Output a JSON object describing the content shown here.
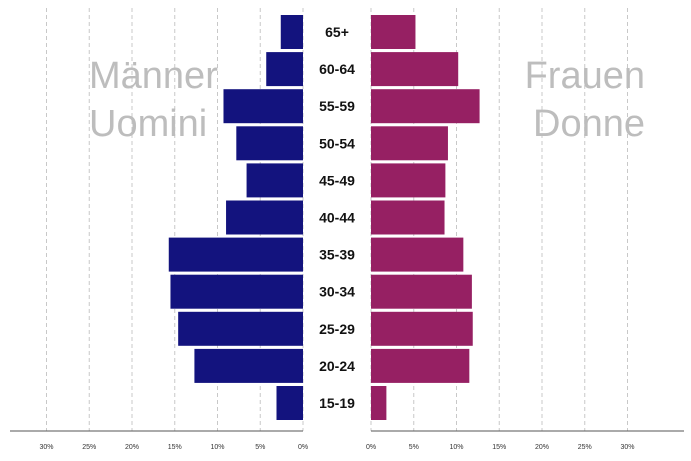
{
  "chart_data": {
    "type": "bar",
    "orientation": "horizontal",
    "layout": "population-pyramid",
    "categories": [
      "65+",
      "60-64",
      "55-59",
      "50-54",
      "45-49",
      "40-44",
      "35-39",
      "30-34",
      "25-29",
      "20-24",
      "15-19"
    ],
    "series": [
      {
        "name_lines": [
          "Männer",
          "Uomini"
        ],
        "side": "left",
        "color": "#13137e",
        "values": [
          2.6,
          4.3,
          9.3,
          7.8,
          6.6,
          9.0,
          15.7,
          15.5,
          14.6,
          12.7,
          3.1
        ]
      },
      {
        "name_lines": [
          "Frauen",
          "Donne"
        ],
        "side": "right",
        "color": "#962063",
        "values": [
          5.2,
          10.2,
          12.7,
          9.0,
          8.7,
          8.6,
          10.8,
          11.8,
          11.9,
          11.5,
          1.8
        ]
      }
    ],
    "xlim": [
      0,
      35
    ],
    "ticks": [
      0,
      5,
      10,
      15,
      20,
      25,
      30
    ],
    "tick_labels": [
      "0%",
      "5%",
      "10%",
      "15%",
      "20%",
      "25%",
      "30%"
    ],
    "grid": true,
    "legend": "in-plot titles top-left and top-right"
  }
}
